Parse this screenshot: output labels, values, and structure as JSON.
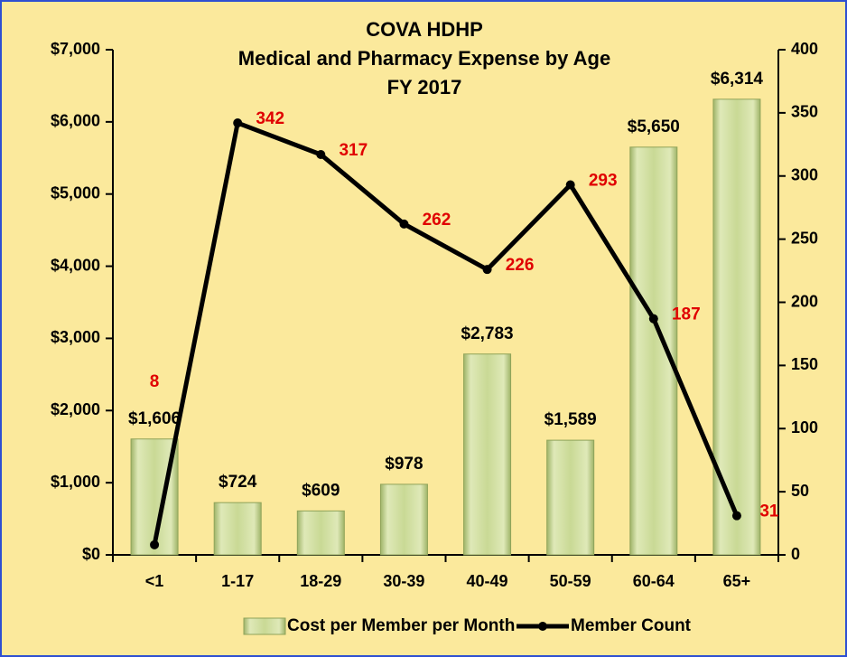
{
  "chart_data": {
    "type": "combo",
    "title": [
      "COVA HDHP",
      "Medical and Pharmacy Expense by Age",
      "FY 2017"
    ],
    "categories": [
      "<1",
      "1-17",
      "18-29",
      "30-39",
      "40-49",
      "50-59",
      "60-64",
      "65+"
    ],
    "series": [
      {
        "name": "Cost per Member per Month",
        "type": "bar",
        "color": "#c9d995",
        "values": [
          1606,
          724,
          609,
          978,
          2783,
          1589,
          5650,
          6314
        ],
        "value_labels": [
          "$1,606",
          "$724",
          "$609",
          "$978",
          "$2,783",
          "$1,589",
          "$5,650",
          "$6,314"
        ]
      },
      {
        "name": "Member Count",
        "type": "line",
        "axis": "y2",
        "color": "#000000",
        "values": [
          8,
          342,
          317,
          262,
          226,
          293,
          187,
          31
        ]
      }
    ],
    "ylim": [
      0,
      7000
    ],
    "yticks": [
      {
        "value": 0,
        "label": "$0"
      },
      {
        "value": 1000,
        "label": "$1,000"
      },
      {
        "value": 2000,
        "label": "$2,000"
      },
      {
        "value": 3000,
        "label": "$3,000"
      },
      {
        "value": 4000,
        "label": "$4,000"
      },
      {
        "value": 5000,
        "label": "$5,000"
      },
      {
        "value": 6000,
        "label": "$6,000"
      },
      {
        "value": 7000,
        "label": "$7,000"
      }
    ],
    "y2lim": [
      0,
      400
    ],
    "y2ticks": [
      0,
      50,
      100,
      150,
      200,
      250,
      300,
      350,
      400
    ],
    "legend": "bottom"
  }
}
